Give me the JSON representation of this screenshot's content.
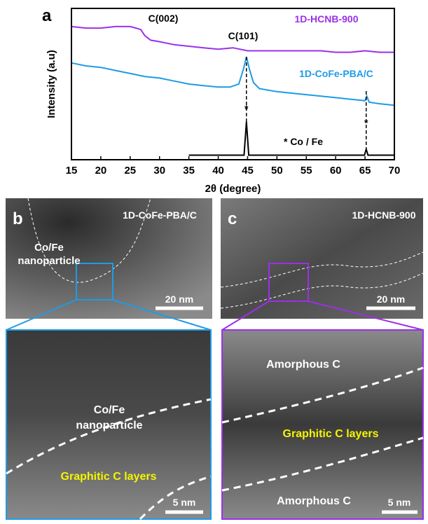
{
  "chart_data": {
    "type": "line",
    "panel_letter": "a",
    "x_label": "2θ (degree)",
    "y_label": "Intensity (a.u)",
    "xlim": [
      15,
      70
    ],
    "xticks": [
      15,
      20,
      25,
      30,
      35,
      40,
      45,
      50,
      55,
      60,
      65,
      70
    ],
    "ylim": [
      0,
      100
    ],
    "series": [
      {
        "name": "1D-HCNB-900",
        "color": "#9b30e8",
        "x": [
          15,
          17.5,
          20,
          22.5,
          25,
          26,
          26.8,
          27.5,
          28.5,
          30,
          32.5,
          35,
          37.5,
          40,
          42.5,
          45,
          47.5,
          50,
          52.5,
          55,
          57.5,
          60,
          62.5,
          65,
          67.5,
          70
        ],
        "values": [
          88,
          87,
          87,
          88,
          88,
          87,
          86,
          82,
          79,
          78,
          76,
          75,
          74,
          73,
          74,
          72,
          72,
          72,
          72,
          72,
          72,
          71,
          71,
          72,
          71,
          71
        ]
      },
      {
        "name": "1D-CoFe-PBA/C",
        "color": "#1e9be6",
        "x": [
          15,
          17.5,
          20,
          22.5,
          25,
          27.5,
          30,
          32.5,
          35,
          37.5,
          40,
          42,
          43.5,
          44.3,
          44.8,
          45.3,
          46,
          47,
          50,
          52.5,
          55,
          57.5,
          60,
          62.5,
          65,
          65.3,
          65.7,
          67.5,
          70
        ],
        "values": [
          64,
          62,
          61,
          59,
          57,
          55,
          54,
          52,
          50,
          49,
          48,
          48,
          50,
          60,
          68,
          60,
          51,
          47,
          45,
          44,
          43,
          42,
          41,
          40,
          39,
          42,
          38,
          37,
          36
        ]
      },
      {
        "name": "* Co / Fe",
        "color": "#000000",
        "x": [
          35,
          44.4,
          44.8,
          45.2,
          64.9,
          65.2,
          65.5,
          70
        ],
        "values": [
          3,
          3,
          25,
          3,
          3,
          7,
          3,
          3
        ]
      }
    ],
    "annotations": [
      "C(002)",
      "C(101)"
    ]
  },
  "panels": [
    {
      "letter": "b",
      "title": "1D-CoFe-PBA/C",
      "region_label": [
        "Co/Fe",
        "nanoparticle"
      ],
      "scale_bar": "20 nm",
      "zoom": {
        "labels": [
          [
            "Co/Fe",
            "nanoparticle"
          ],
          [
            "Graphitic C layers"
          ]
        ],
        "scale_bar": "5 nm"
      }
    },
    {
      "letter": "c",
      "title": "1D-HCNB-900",
      "scale_bar": "20 nm",
      "zoom": {
        "labels": [
          [
            "Amorphous C"
          ],
          [
            "Graphitic C layers"
          ],
          [
            "Amorphous C"
          ]
        ],
        "scale_bar": "5 nm"
      }
    }
  ]
}
